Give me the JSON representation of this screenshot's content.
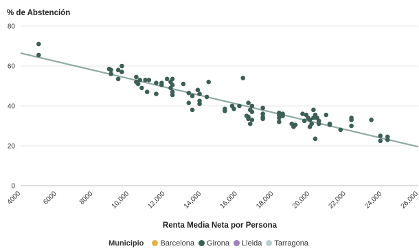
{
  "chart_data": {
    "type": "scatter",
    "title": "",
    "ylabel": "% de Abstención",
    "xlabel": "Renta Media Neta por Persona",
    "xlim": [
      4000,
      26000
    ],
    "ylim": [
      0,
      80
    ],
    "x_ticks": [
      4000,
      6000,
      8000,
      10000,
      12000,
      14000,
      16000,
      18000,
      20000,
      22000,
      24000,
      26000
    ],
    "x_tick_labels": [
      "4000",
      "6000",
      "8000",
      "10,000",
      "12,000",
      "14,000",
      "16,000",
      "18,000",
      "20,000",
      "22,000",
      "24,000",
      "26,000"
    ],
    "y_ticks": [
      0,
      20,
      40,
      60,
      80
    ],
    "y_tick_labels": [
      "0",
      "20",
      "40",
      "60",
      "80"
    ],
    "grid": "horizontal",
    "legend": {
      "title": "Municipio",
      "placement": "bottom",
      "items": [
        {
          "label": "Barcelona",
          "color": "#e0b24c"
        },
        {
          "label": "Girona",
          "color": "#3d5f56"
        },
        {
          "label": "Lleida",
          "color": "#a07fbf"
        },
        {
          "label": "Tarragona",
          "color": "#b9cfcd"
        }
      ]
    },
    "trendline": {
      "x": [
        4000,
        26000
      ],
      "y": [
        66.5,
        19.5
      ],
      "color": "#8fa9a3"
    },
    "point_color": "#3d5f56",
    "series": [
      {
        "municipio": "Girona",
        "points": [
          [
            5000,
            71
          ],
          [
            5000,
            65.5
          ],
          [
            8900,
            58.5
          ],
          [
            9000,
            58
          ],
          [
            9000,
            56
          ],
          [
            9400,
            58
          ],
          [
            9400,
            53.5
          ],
          [
            9600,
            60
          ],
          [
            9600,
            57
          ],
          [
            10400,
            54.5
          ],
          [
            10400,
            52
          ],
          [
            10500,
            51
          ],
          [
            10600,
            53
          ],
          [
            10700,
            49
          ],
          [
            10900,
            53
          ],
          [
            11000,
            47
          ],
          [
            11100,
            53
          ],
          [
            11500,
            51.5
          ],
          [
            11500,
            46
          ],
          [
            11800,
            51.5
          ],
          [
            11800,
            50.5
          ],
          [
            12100,
            53.5
          ],
          [
            12300,
            52
          ],
          [
            12400,
            53.5
          ],
          [
            12300,
            49
          ],
          [
            12400,
            50.5
          ],
          [
            12400,
            47
          ],
          [
            12400,
            45.5
          ],
          [
            13000,
            51
          ],
          [
            13300,
            46.5
          ],
          [
            13500,
            45
          ],
          [
            13300,
            41.5
          ],
          [
            13500,
            38
          ],
          [
            13800,
            48
          ],
          [
            13900,
            46
          ],
          [
            13900,
            42.5
          ],
          [
            13900,
            41
          ],
          [
            14300,
            44.5
          ],
          [
            14400,
            52
          ],
          [
            15300,
            38.5
          ],
          [
            15300,
            37.5
          ],
          [
            15700,
            40
          ],
          [
            15800,
            38.5
          ],
          [
            16100,
            40
          ],
          [
            16300,
            54
          ],
          [
            16500,
            35
          ],
          [
            16600,
            33.5
          ],
          [
            16600,
            34.5
          ],
          [
            16600,
            41.5
          ],
          [
            16700,
            38
          ],
          [
            16700,
            31
          ],
          [
            16800,
            40
          ],
          [
            16800,
            37
          ],
          [
            16800,
            33
          ],
          [
            17400,
            39
          ],
          [
            17400,
            36
          ],
          [
            17400,
            34.5
          ],
          [
            17400,
            33.5
          ],
          [
            18300,
            36.5
          ],
          [
            18300,
            35.5
          ],
          [
            18300,
            34
          ],
          [
            18300,
            32
          ],
          [
            18500,
            36
          ],
          [
            18500,
            35
          ],
          [
            19000,
            31
          ],
          [
            19100,
            29.5
          ],
          [
            19200,
            30.5
          ],
          [
            19600,
            36
          ],
          [
            19700,
            32.5
          ],
          [
            19800,
            35.5
          ],
          [
            19900,
            34
          ],
          [
            20000,
            33
          ],
          [
            20000,
            29.5
          ],
          [
            20100,
            31
          ],
          [
            20200,
            38
          ],
          [
            20200,
            34
          ],
          [
            20300,
            35.5
          ],
          [
            20300,
            23.5
          ],
          [
            20400,
            34
          ],
          [
            20500,
            32.5
          ],
          [
            20500,
            31
          ],
          [
            20900,
            35.5
          ],
          [
            21100,
            31
          ],
          [
            21100,
            30.5
          ],
          [
            21700,
            28
          ],
          [
            22300,
            34
          ],
          [
            22300,
            33
          ],
          [
            22300,
            30
          ],
          [
            23400,
            33
          ],
          [
            23900,
            25
          ],
          [
            23900,
            22.5
          ],
          [
            24300,
            24.5
          ],
          [
            24300,
            23
          ]
        ]
      }
    ]
  }
}
